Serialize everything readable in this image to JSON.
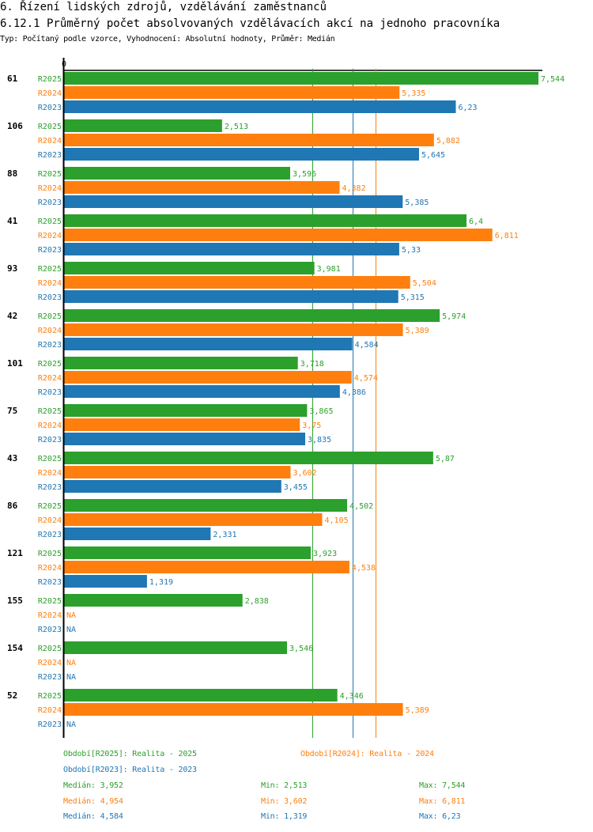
{
  "header": {
    "title": "6. Řízení lidských zdrojů, vzdělávání zaměstnanců",
    "subtitle": "6.12.1 Průměrný počet absolvovaných vzdělávacích akcí na jednoho pracovníka",
    "meta": "Typ: Počítaný podle vzorce, Vyhodnocení: Absolutní hodnoty, Průměr: Medián"
  },
  "colors": {
    "R2025": "#2ca02c",
    "R2024": "#ff7f0e",
    "R2023": "#1f77b4"
  },
  "chart_data": {
    "type": "bar",
    "orientation": "horizontal",
    "title": "6.12.1 Průměrný počet absolvovaných vzdělávacích akcí na jednoho pracovníka",
    "xlabel": "",
    "ylabel": "",
    "x_tick_labels": [
      "0"
    ],
    "xlim": [
      0,
      7.544
    ],
    "grid": false,
    "na_label": "NA",
    "categories": [
      "61",
      "106",
      "88",
      "41",
      "93",
      "42",
      "101",
      "75",
      "43",
      "86",
      "121",
      "155",
      "154",
      "52"
    ],
    "series": [
      {
        "name": "R2025",
        "values": [
          7.544,
          2.513,
          3.596,
          6.4,
          3.981,
          5.974,
          3.718,
          3.865,
          5.87,
          4.502,
          3.923,
          2.838,
          3.546,
          4.346
        ],
        "labels": [
          "7,544",
          "2,513",
          "3,596",
          "6,4",
          "3,981",
          "5,974",
          "3,718",
          "3,865",
          "5,87",
          "4,502",
          "3,923",
          "2,838",
          "3,546",
          "4,346"
        ]
      },
      {
        "name": "R2024",
        "values": [
          5.335,
          5.882,
          4.382,
          6.811,
          5.504,
          5.389,
          4.574,
          3.75,
          3.602,
          4.105,
          4.538,
          null,
          null,
          5.389
        ],
        "labels": [
          "5,335",
          "5,882",
          "4,382",
          "6,811",
          "5,504",
          "5,389",
          "4,574",
          "3,75",
          "3,602",
          "4,105",
          "4,538",
          "NA",
          "NA",
          "5,389"
        ]
      },
      {
        "name": "R2023",
        "values": [
          6.23,
          5.645,
          5.385,
          5.33,
          5.315,
          4.584,
          4.386,
          3.835,
          3.455,
          2.331,
          1.319,
          null,
          null,
          null
        ],
        "labels": [
          "6,23",
          "5,645",
          "5,385",
          "5,33",
          "5,315",
          "4,584",
          "4,386",
          "3,835",
          "3,455",
          "2,331",
          "1,319",
          "NA",
          "NA",
          "NA"
        ]
      }
    ],
    "reference_lines": [
      {
        "series": "R2025",
        "type": "median",
        "value": 3.952
      },
      {
        "series": "R2023",
        "type": "median",
        "value": 4.584
      },
      {
        "series": "R2024",
        "type": "median",
        "value": 4.954
      }
    ],
    "legend": {
      "placement": "bottom",
      "periods": [
        {
          "series": "R2025",
          "text": "Období[R2025]: Realita - 2025"
        },
        {
          "series": "R2024",
          "text": "Období[R2024]: Realita - 2024"
        },
        {
          "series": "R2023",
          "text": "Období[R2023]: Realita - 2023"
        }
      ],
      "stats": [
        {
          "series": "R2025",
          "median": "Medián: 3,952",
          "min": "Min: 2,513",
          "max": "Max: 7,544"
        },
        {
          "series": "R2024",
          "median": "Medián: 4,954",
          "min": "Min: 3,602",
          "max": "Max: 6,811"
        },
        {
          "series": "R2023",
          "median": "Medián: 4,584",
          "min": "Min: 1,319",
          "max": "Max: 6,23"
        }
      ]
    }
  }
}
